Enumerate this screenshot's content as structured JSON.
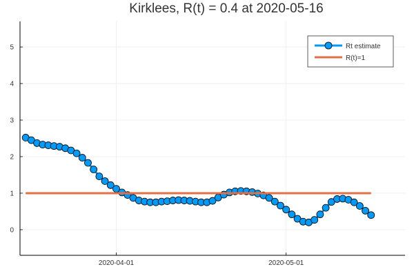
{
  "chart_data": {
    "type": "line",
    "title": "Kirklees, R(t) = 0.4 at 2020-05-16",
    "xlabel": "",
    "ylabel": "",
    "x_range": [
      "2020-03-15",
      "2020-05-22"
    ],
    "ylim": [
      -0.7,
      5.7
    ],
    "y_ticks": [
      0,
      1,
      2,
      3,
      4,
      5
    ],
    "x_ticks": [
      "2020-04-01",
      "2020-05-01"
    ],
    "grid": true,
    "legend_position": "top-right",
    "series": [
      {
        "name": "Rt estimate",
        "color": "#009af9",
        "marker": "circle",
        "x": [
          "2020-03-16",
          "2020-03-17",
          "2020-03-18",
          "2020-03-19",
          "2020-03-20",
          "2020-03-21",
          "2020-03-22",
          "2020-03-23",
          "2020-03-24",
          "2020-03-25",
          "2020-03-26",
          "2020-03-27",
          "2020-03-28",
          "2020-03-29",
          "2020-03-30",
          "2020-03-31",
          "2020-04-01",
          "2020-04-02",
          "2020-04-03",
          "2020-04-04",
          "2020-04-05",
          "2020-04-06",
          "2020-04-07",
          "2020-04-08",
          "2020-04-09",
          "2020-04-10",
          "2020-04-11",
          "2020-04-12",
          "2020-04-13",
          "2020-04-14",
          "2020-04-15",
          "2020-04-16",
          "2020-04-17",
          "2020-04-18",
          "2020-04-19",
          "2020-04-20",
          "2020-04-21",
          "2020-04-22",
          "2020-04-23",
          "2020-04-24",
          "2020-04-25",
          "2020-04-26",
          "2020-04-27",
          "2020-04-28",
          "2020-04-29",
          "2020-04-30",
          "2020-05-01",
          "2020-05-02",
          "2020-05-03",
          "2020-05-04",
          "2020-05-05",
          "2020-05-06",
          "2020-05-07",
          "2020-05-08",
          "2020-05-09",
          "2020-05-10",
          "2020-05-11",
          "2020-05-12",
          "2020-05-13",
          "2020-05-14",
          "2020-05-15",
          "2020-05-16"
        ],
        "values": [
          2.52,
          2.45,
          2.37,
          2.33,
          2.31,
          2.29,
          2.27,
          2.23,
          2.17,
          2.09,
          1.97,
          1.83,
          1.65,
          1.46,
          1.33,
          1.22,
          1.12,
          1.02,
          0.95,
          0.87,
          0.8,
          0.77,
          0.75,
          0.75,
          0.77,
          0.78,
          0.8,
          0.81,
          0.8,
          0.79,
          0.77,
          0.75,
          0.75,
          0.79,
          0.88,
          0.96,
          1.02,
          1.05,
          1.06,
          1.05,
          1.03,
          0.99,
          0.94,
          0.87,
          0.77,
          0.66,
          0.55,
          0.42,
          0.3,
          0.22,
          0.2,
          0.27,
          0.42,
          0.6,
          0.76,
          0.84,
          0.85,
          0.82,
          0.75,
          0.65,
          0.52,
          0.4
        ]
      },
      {
        "name": "R(t)=1",
        "color": "#e26f46",
        "marker": "none",
        "x": [
          "2020-03-16",
          "2020-05-16"
        ],
        "values": [
          1,
          1
        ]
      }
    ]
  }
}
